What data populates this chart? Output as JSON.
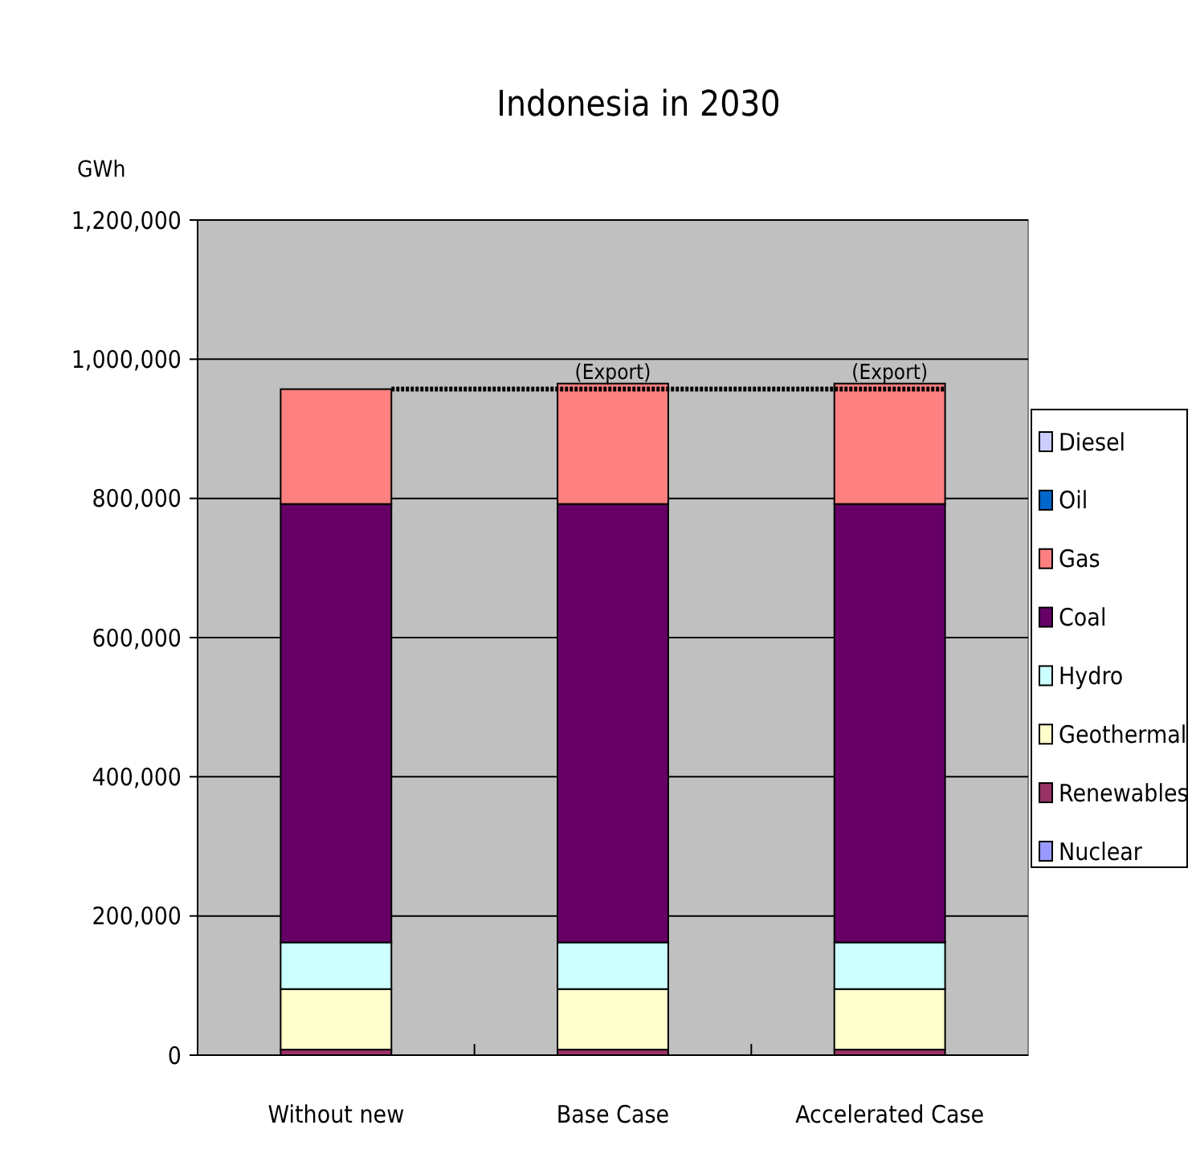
{
  "chart_data": {
    "type": "bar",
    "title": "Indonesia in 2030",
    "ylabel": "GWh",
    "categories": [
      "Without new",
      "Base Case",
      "Accelerated Case"
    ],
    "stacked": true,
    "series": [
      {
        "name": "Nuclear",
        "color": "#9999ff",
        "values": [
          0,
          0,
          0
        ]
      },
      {
        "name": "Renewables",
        "color": "#993366",
        "values": [
          8000,
          8000,
          8000
        ]
      },
      {
        "name": "Geothermal",
        "color": "#ffffcc",
        "values": [
          87000,
          87000,
          87000
        ]
      },
      {
        "name": "Hydro",
        "color": "#ccffff",
        "values": [
          67000,
          67000,
          67000
        ]
      },
      {
        "name": "Coal",
        "color": "#660066",
        "values": [
          630000,
          630000,
          630000
        ]
      },
      {
        "name": "Gas",
        "color": "#ff8080",
        "values": [
          165000,
          173000,
          173000
        ]
      },
      {
        "name": "Oil",
        "color": "#0066cc",
        "values": [
          0,
          0,
          0
        ]
      },
      {
        "name": "Diesel",
        "color": "#ccccff",
        "values": [
          0,
          0,
          0
        ]
      }
    ],
    "ylim": [
      0,
      1200000
    ],
    "yticks": [
      {
        "value": 0,
        "label": "0"
      },
      {
        "value": 200000,
        "label": "200,000"
      },
      {
        "value": 400000,
        "label": "400,000"
      },
      {
        "value": 600000,
        "label": "600,000"
      },
      {
        "value": 800000,
        "label": "800,000"
      },
      {
        "value": 1000000,
        "label": "1,000,000"
      },
      {
        "value": 1200000,
        "label": "1,200,000"
      }
    ],
    "grid": "y",
    "legend": "right",
    "ref_lines": [
      {
        "axis": "y",
        "value": 957000,
        "line_style": "dotted",
        "color": "#000000"
      }
    ],
    "annotations": [
      {
        "text": "(Export)",
        "x": "Base Case",
        "y": 965000
      },
      {
        "text": "(Export)",
        "x": "Accelerated Case",
        "y": 965000
      }
    ]
  }
}
